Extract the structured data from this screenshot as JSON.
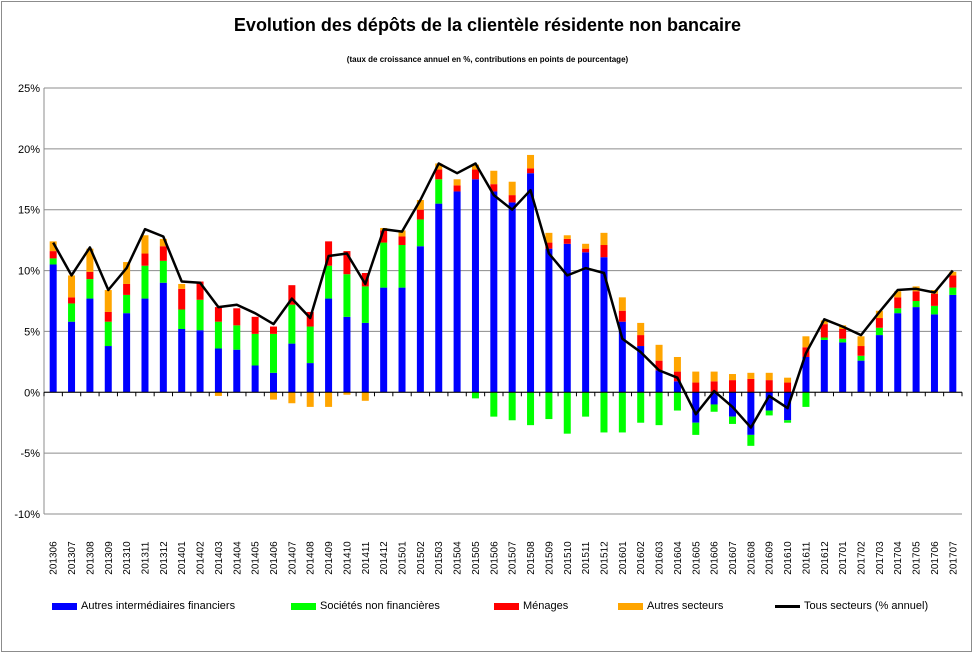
{
  "chart_data": {
    "type": "bar",
    "stacked": true,
    "title": "Evolution des dépôts de la clientèle résidente non bancaire",
    "subtitle": "(taux de croissance annuel en %, contributions en points de pourcentage)",
    "ylim": [
      -10,
      25
    ],
    "yticks": [
      "-10%",
      "-5%",
      "0%",
      "5%",
      "10%",
      "15%",
      "20%",
      "25%"
    ],
    "ytick_values": [
      -10,
      -5,
      0,
      5,
      10,
      15,
      20,
      25
    ],
    "grid": true,
    "legend_position": "bottom",
    "categories": [
      "201306",
      "201307",
      "201308",
      "201309",
      "201310",
      "201311",
      "201312",
      "201401",
      "201402",
      "201403",
      "201404",
      "201405",
      "201406",
      "201407",
      "201408",
      "201409",
      "201410",
      "201411",
      "201412",
      "201501",
      "201502",
      "201503",
      "201504",
      "201505",
      "201506",
      "201507",
      "201508",
      "201509",
      "201510",
      "201511",
      "201512",
      "201601",
      "201602",
      "201603",
      "201604",
      "201605",
      "201606",
      "201607",
      "201608",
      "201609",
      "201610",
      "201611",
      "201612",
      "201701",
      "201702",
      "201703",
      "201704",
      "201705",
      "201706",
      "201707"
    ],
    "series": [
      {
        "name": "Autres intermédiaires financiers",
        "color": "#0000ff",
        "values": [
          10.5,
          5.8,
          7.7,
          3.8,
          6.5,
          7.7,
          9.0,
          5.2,
          5.1,
          3.6,
          3.5,
          2.2,
          1.6,
          4.0,
          2.4,
          7.7,
          6.2,
          5.7,
          8.6,
          8.6,
          12.0,
          15.5,
          16.5,
          17.5,
          16.5,
          15.6,
          18.0,
          11.8,
          12.2,
          11.5,
          11.1,
          5.8,
          3.8,
          1.8,
          0.9,
          -2.5,
          -1.0,
          -2.0,
          -3.5,
          -1.5,
          -2.3,
          2.9,
          4.3,
          4.1,
          2.6,
          4.7,
          6.5,
          7.0,
          6.4,
          8.0
        ]
      },
      {
        "name": "Sociétés non financières",
        "color": "#00ff00",
        "values": [
          0.5,
          1.5,
          1.6,
          2.0,
          1.5,
          2.7,
          1.8,
          1.6,
          2.5,
          2.2,
          2.0,
          2.6,
          3.2,
          3.2,
          3.0,
          2.7,
          3.5,
          3.0,
          3.7,
          3.5,
          2.2,
          2.0,
          0.0,
          -0.5,
          -2.0,
          -2.3,
          -2.7,
          -2.2,
          -3.4,
          -2.0,
          -3.3,
          -3.3,
          -2.5,
          -2.7,
          -1.5,
          -1.0,
          -0.6,
          -0.6,
          -0.9,
          -0.4,
          -0.2,
          -1.2,
          0.2,
          0.3,
          0.4,
          0.6,
          0.4,
          0.5,
          0.7,
          0.6
        ]
      },
      {
        "name": "Ménages",
        "color": "#ff0000",
        "values": [
          0.6,
          0.5,
          0.6,
          0.8,
          0.9,
          1.0,
          1.2,
          1.7,
          1.5,
          1.2,
          1.4,
          1.4,
          0.6,
          1.6,
          1.2,
          2.0,
          1.9,
          1.1,
          1.0,
          0.7,
          0.8,
          0.8,
          0.5,
          0.8,
          0.6,
          0.6,
          0.4,
          0.5,
          0.4,
          0.3,
          1.0,
          0.9,
          0.9,
          0.8,
          0.8,
          0.8,
          0.9,
          1.0,
          1.1,
          1.0,
          0.8,
          0.8,
          1.1,
          0.8,
          0.8,
          0.8,
          0.9,
          0.8,
          1.0,
          1.0
        ]
      },
      {
        "name": "Autres secteurs",
        "color": "#ffa500",
        "values": [
          0.8,
          1.8,
          1.9,
          1.8,
          1.8,
          1.5,
          0.6,
          0.4,
          0.0,
          -0.3,
          0.0,
          0.0,
          -0.6,
          -0.9,
          -1.2,
          -1.2,
          -0.2,
          -0.7,
          0.2,
          0.5,
          0.8,
          0.5,
          0.5,
          0.4,
          1.1,
          1.1,
          1.1,
          0.8,
          0.3,
          0.4,
          1.0,
          1.1,
          1.0,
          1.3,
          1.2,
          0.9,
          0.8,
          0.5,
          0.5,
          0.6,
          0.4,
          0.9,
          0.3,
          0.3,
          0.8,
          0.6,
          0.5,
          0.4,
          0.3,
          0.3
        ]
      }
    ],
    "line": {
      "name": "Tous secteurs (% annuel)",
      "color": "#000000",
      "values": [
        12.3,
        9.6,
        11.9,
        8.4,
        10.2,
        13.4,
        12.8,
        9.1,
        9.0,
        7.0,
        7.2,
        6.5,
        5.6,
        7.7,
        6.1,
        11.2,
        11.4,
        8.9,
        13.4,
        13.2,
        15.8,
        18.8,
        18.0,
        18.8,
        16.2,
        15.0,
        16.6,
        11.4,
        9.6,
        10.2,
        9.8,
        4.4,
        3.3,
        1.8,
        1.2,
        -1.8,
        0.1,
        -1.2,
        -2.9,
        -0.3,
        -1.3,
        3.2,
        6.0,
        5.4,
        4.7,
        6.6,
        8.4,
        8.5,
        8.2,
        10.0
      ]
    }
  }
}
